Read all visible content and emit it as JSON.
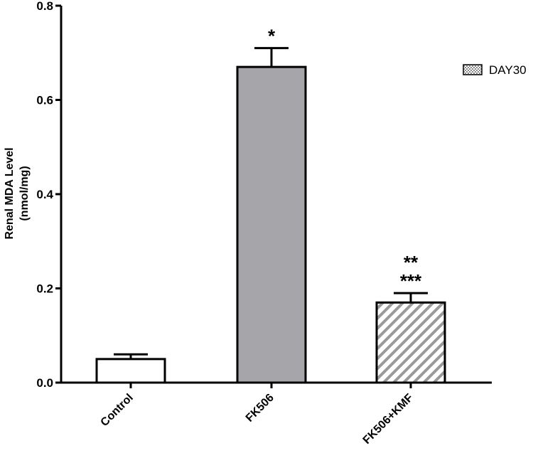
{
  "chart_data": {
    "type": "bar",
    "categories": [
      "Control",
      "FK506",
      "FK506+KMF"
    ],
    "values": [
      0.05,
      0.67,
      0.17
    ],
    "errors": [
      0.01,
      0.04,
      0.02
    ],
    "bar_fills": [
      "white",
      "gray",
      "hatched"
    ],
    "annotations": [
      [],
      [
        "*"
      ],
      [
        "**",
        "***"
      ]
    ],
    "ylabel_lines": [
      "Renal MDA Level",
      "(nmol/mg)"
    ],
    "ylim": [
      0,
      0.8
    ],
    "yticks": [
      "0.0",
      "0.2",
      "0.4",
      "0.6",
      "0.8"
    ],
    "legend": {
      "label": "DAY30",
      "position": "top-right"
    },
    "grid": false,
    "colors": {
      "gray_bar": "#a6a5aa",
      "hatch": "#9a9a9a",
      "axis": "#000000"
    }
  }
}
